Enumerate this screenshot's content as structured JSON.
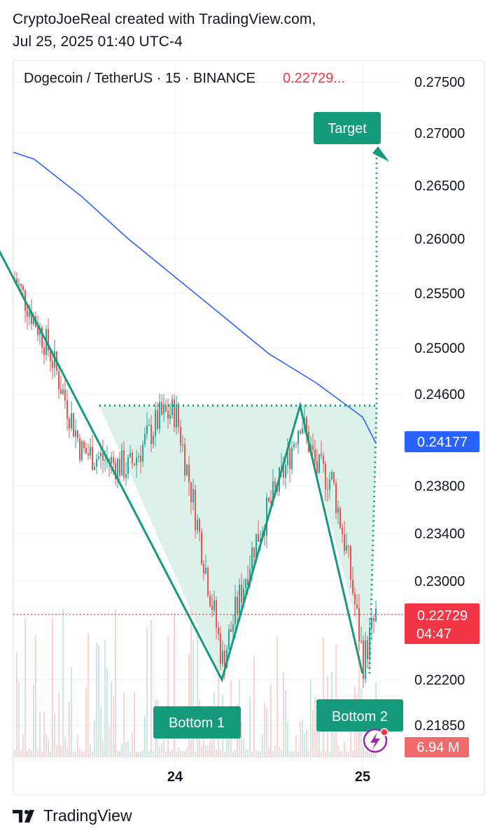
{
  "caption": {
    "line1": "CryptoJoeReal created with TradingView.com,",
    "line2": "Jul 25, 2025 01:40 UTC-4"
  },
  "header": {
    "symbol": "Dogecoin / TetherUS · 15 · BINANCE",
    "price": "0.22729..."
  },
  "footer": {
    "brand": "TradingView"
  },
  "colors": {
    "up": "#26a69a",
    "down": "#ef5350",
    "ma": "#2962ff",
    "pattern": "#159b7c",
    "fill": "#d7efe8",
    "price_label": "#f23645"
  },
  "icons": [
    "tradingview-logo-icon",
    "lightning-bolt-icon"
  ],
  "chart_data": {
    "type": "line",
    "y_ticks": [
      "0.27500",
      "0.27000",
      "0.26500",
      "0.26000",
      "0.25500",
      "0.25000",
      "0.24600",
      "0.23800",
      "0.23400",
      "0.23000",
      "0.22200",
      "0.21850"
    ],
    "x_ticks": [
      "24",
      "25"
    ],
    "series": [
      {
        "name": "",
        "kind": "moving-average",
        "points": [
          [
            "Jul 23 00:00",
            0.269
          ],
          [
            "Jul 23 06:00",
            0.2675
          ],
          [
            "Jul 23 12:00",
            0.264
          ],
          [
            "Jul 23 18:00",
            0.26
          ],
          [
            "Jul 24 00:00",
            0.2565
          ],
          [
            "Jul 24 06:00",
            0.253
          ],
          [
            "Jul 24 12:00",
            0.2495
          ],
          [
            "Jul 24 18:00",
            0.247
          ],
          [
            "Jul 25 00:00",
            0.244
          ],
          [
            "Jul 25 01:40",
            0.24177
          ]
        ]
      },
      {
        "name": "",
        "kind": "price-close",
        "points": [
          [
            "Jul 23 00:00",
            0.2612
          ],
          [
            "Jul 23 04:00",
            0.2555
          ],
          [
            "Jul 23 08:00",
            0.2495
          ],
          [
            "Jul 23 12:00",
            0.241
          ],
          [
            "Jul 23 18:00",
            0.2395
          ],
          [
            "Jul 23 22:00",
            0.244
          ],
          [
            "Jul 24 00:00",
            0.2445
          ],
          [
            "Jul 24 04:00",
            0.2305
          ],
          [
            "Jul 24 06:00",
            0.2235
          ],
          [
            "Jul 24 10:00",
            0.233
          ],
          [
            "Jul 24 14:00",
            0.2395
          ],
          [
            "Jul 24 16:00",
            0.244
          ],
          [
            "Jul 24 18:00",
            0.2395
          ],
          [
            "Jul 24 20:00",
            0.2385
          ],
          [
            "Jul 24 22:00",
            0.232
          ],
          [
            "Jul 25 00:00",
            0.2235
          ],
          [
            "Jul 25 01:40",
            0.22729
          ]
        ]
      }
    ],
    "pattern": {
      "name": "double bottom",
      "points": [
        [
          "Jul 23 00:00",
          0.261
        ],
        [
          "Jul 24 06:00",
          0.222
        ],
        [
          "Jul 24 16:00",
          0.245
        ],
        [
          "Jul 24 23:59",
          0.2225
        ]
      ],
      "neckline": 0.245,
      "target": 0.269,
      "labels": {
        "bottom1": "Bottom 1",
        "bottom2": "Bottom 2",
        "target": "Target"
      }
    },
    "price_labels": {
      "ma": "0.24177",
      "last": "0.22729",
      "countdown": "04:47",
      "volume": "6.94 M"
    }
  }
}
